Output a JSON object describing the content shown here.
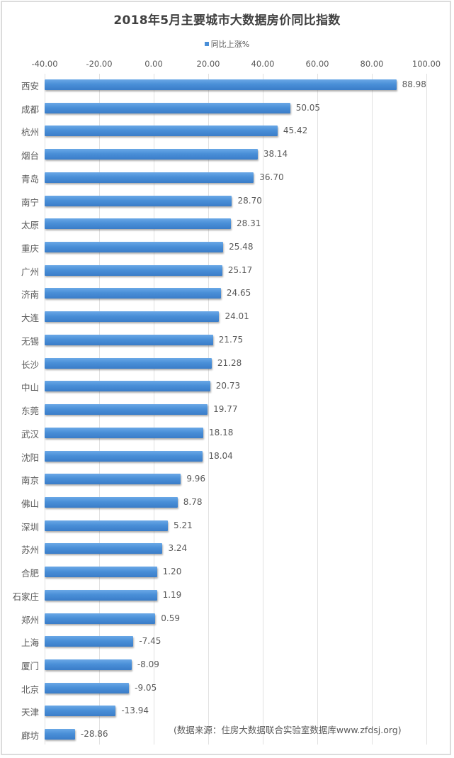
{
  "chart_data": {
    "type": "bar",
    "orientation": "horizontal",
    "title": "2018年5月主要城市大数据房价同比指数",
    "legend": [
      "同比上涨%"
    ],
    "legend_position": "top",
    "xlabel": "",
    "ylabel": "",
    "xlim": [
      -40,
      100
    ],
    "x_ticks": [
      "-40.00",
      "-20.00",
      "0.00",
      "20.00",
      "40.00",
      "60.00",
      "80.00",
      "100.00"
    ],
    "grid": true,
    "categories": [
      "西安",
      "成都",
      "杭州",
      "烟台",
      "青岛",
      "南宁",
      "太原",
      "重庆",
      "广州",
      "济南",
      "大连",
      "无锡",
      "长沙",
      "中山",
      "东莞",
      "武汉",
      "沈阳",
      "南京",
      "佛山",
      "深圳",
      "苏州",
      "合肥",
      "石家庄",
      "郑州",
      "上海",
      "厦门",
      "北京",
      "天津",
      "廊坊"
    ],
    "series": [
      {
        "name": "同比上涨%",
        "values": [
          88.98,
          50.05,
          45.42,
          38.14,
          36.7,
          28.7,
          28.31,
          25.48,
          25.17,
          24.65,
          24.01,
          21.75,
          21.28,
          20.73,
          19.77,
          18.18,
          18.04,
          9.96,
          8.78,
          5.21,
          3.24,
          1.2,
          1.19,
          0.59,
          -7.45,
          -8.09,
          -9.05,
          -13.94,
          -28.86
        ],
        "labels": [
          "88.98",
          "50.05",
          "45.42",
          "38.14",
          "36.70",
          "28.70",
          "28.31",
          "25.48",
          "25.17",
          "24.65",
          "24.01",
          "21.75",
          "21.28",
          "20.73",
          "19.77",
          "18.18",
          "18.04",
          "9.96",
          "8.78",
          "5.21",
          "3.24",
          "1.20",
          "1.19",
          "0.59",
          "-7.45",
          "-8.09",
          "-9.05",
          "-13.94",
          "-28.86"
        ]
      }
    ],
    "annotation": "(数据来源：住房大数据联合实验室数据库www.zfdsj.org)"
  },
  "colors": {
    "bar": "#4a8fd8",
    "text": "#595959",
    "title": "#404040",
    "grid": "#e2e2e2"
  }
}
